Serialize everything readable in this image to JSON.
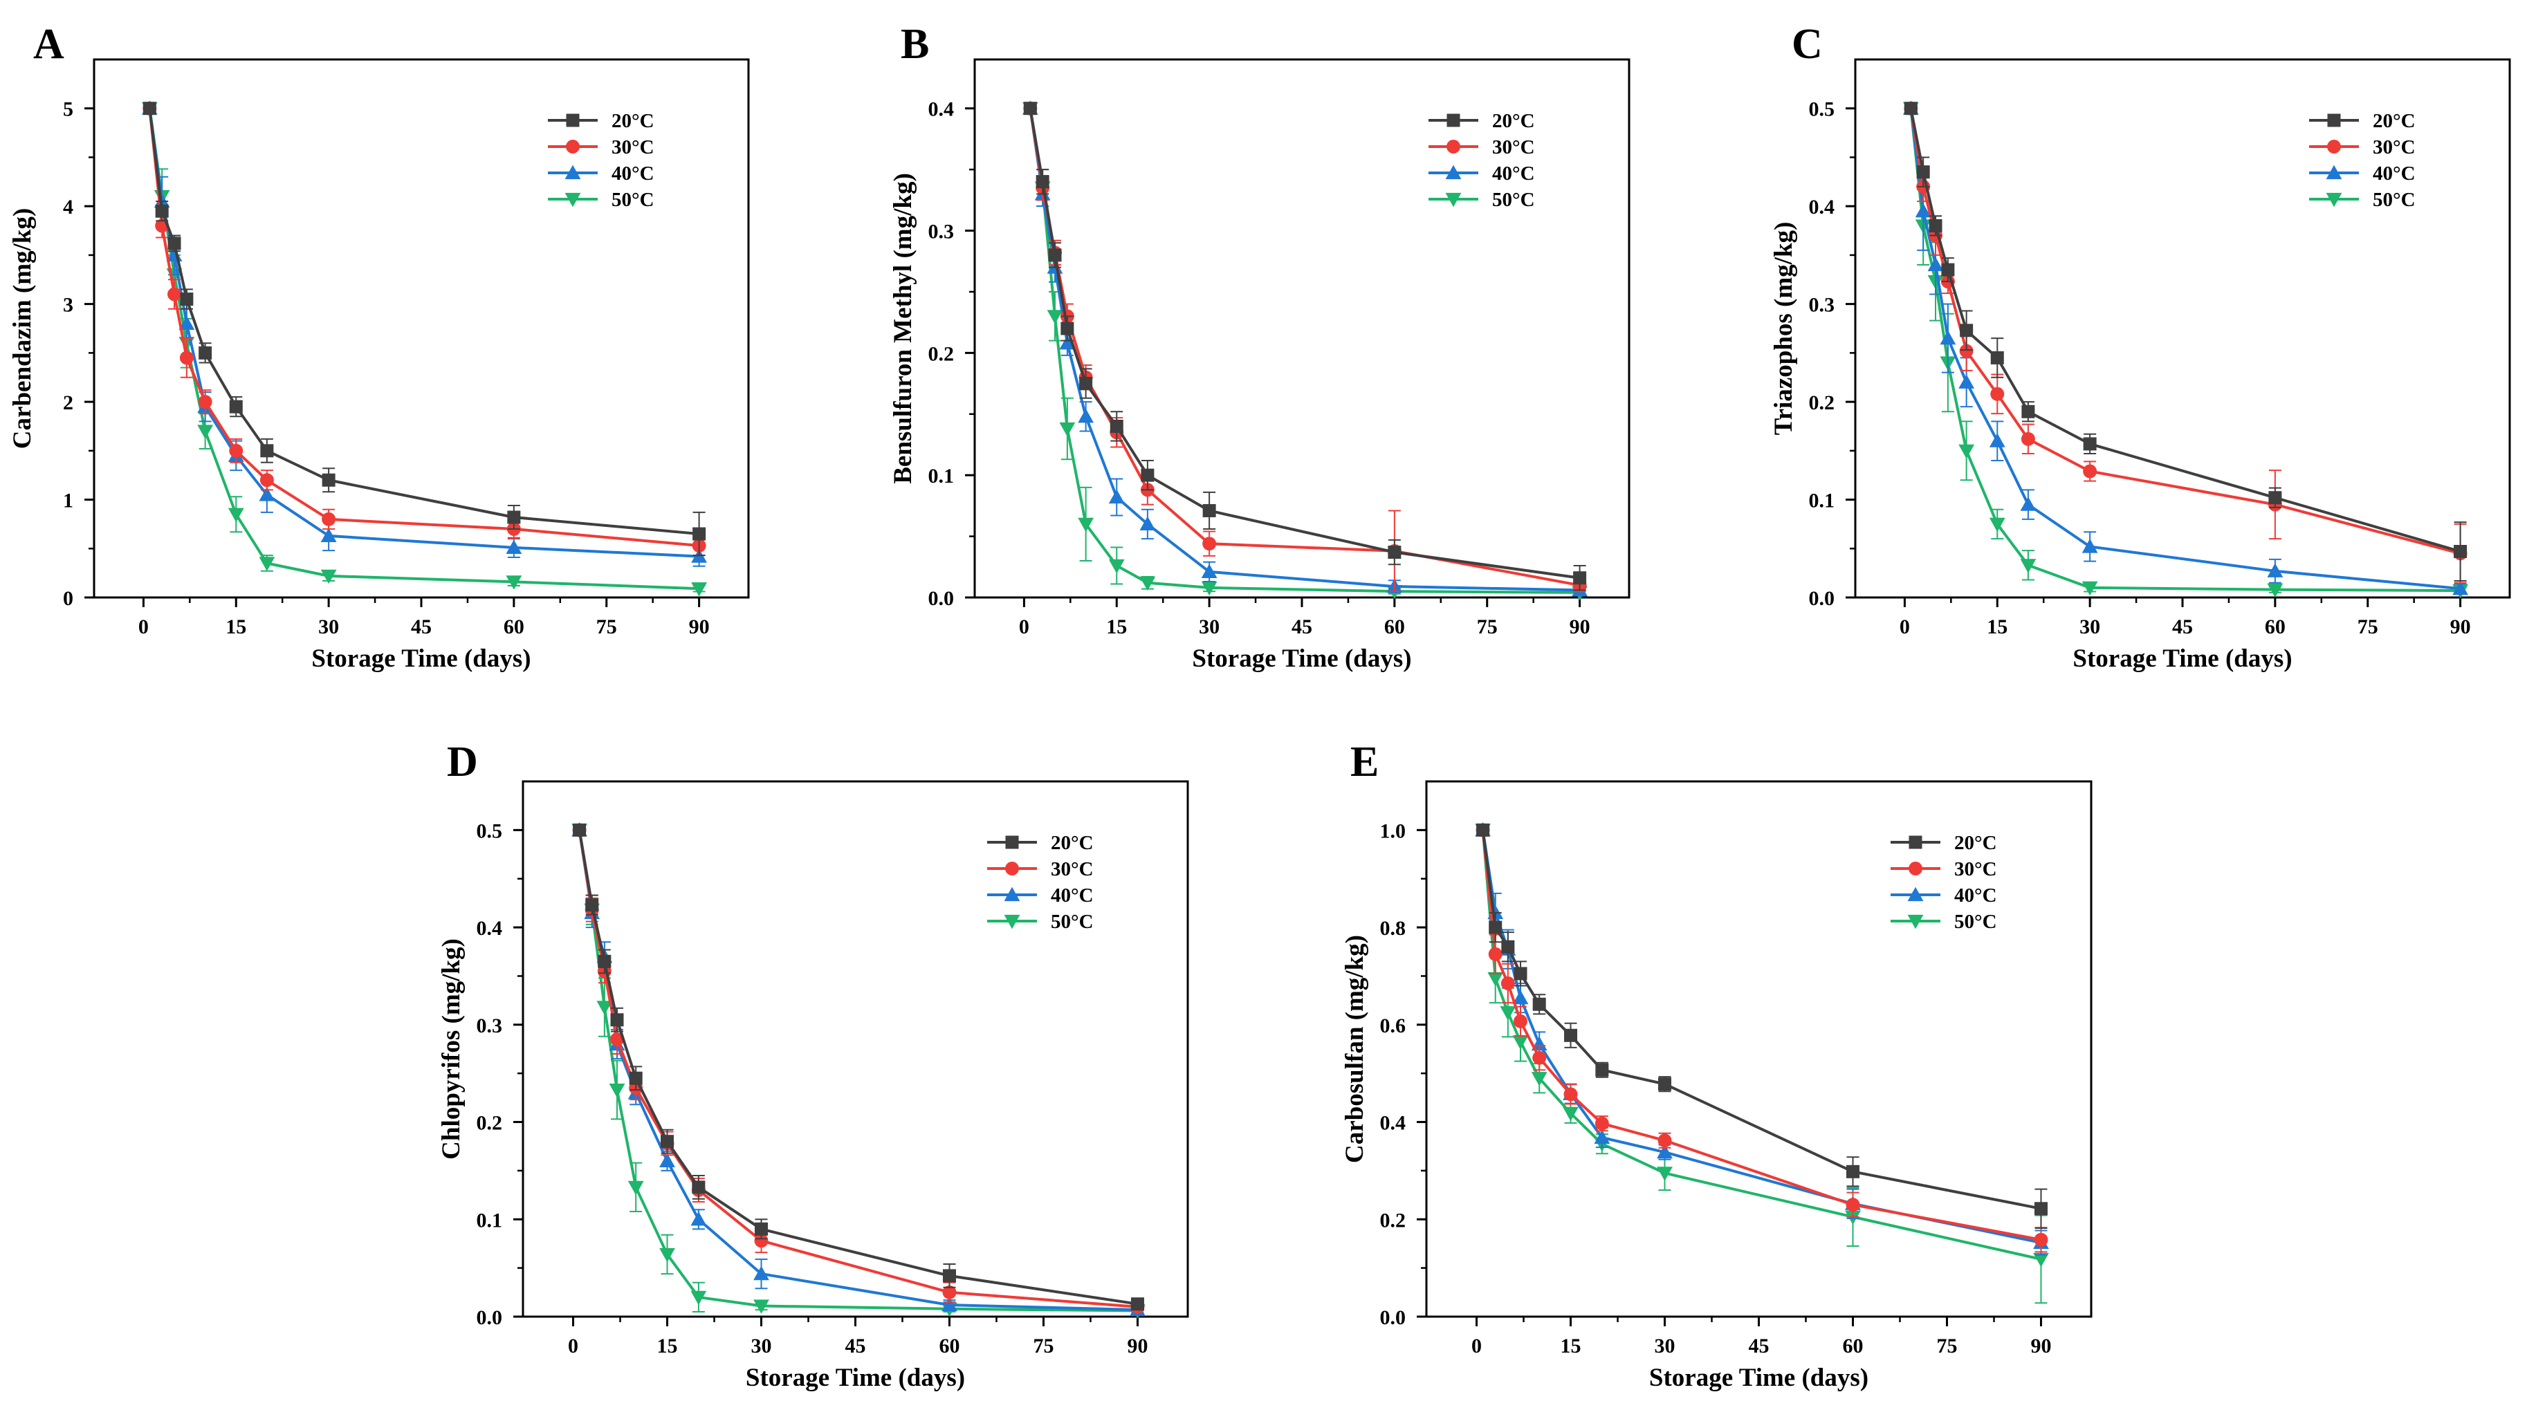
{
  "figure": {
    "background": "#ffffff"
  },
  "colors": {
    "20°C": "#3f3f3f",
    "30°C": "#ef3b36",
    "40°C": "#1f78d4",
    "50°C": "#1fb56a"
  },
  "chart_data": [
    {
      "panel": "A",
      "type": "line",
      "title": "",
      "xlabel": "Storage Time (days)",
      "ylabel": "Carbendazim (mg/kg)",
      "xlim": [
        -8,
        98
      ],
      "ylim": [
        0,
        5.5
      ],
      "xticks": [
        0,
        15,
        30,
        45,
        60,
        75,
        90
      ],
      "yticks": [
        0,
        1,
        2,
        3,
        4,
        5
      ],
      "ytick_labels": [
        "0",
        "1",
        "2",
        "3",
        "4",
        "5"
      ],
      "legend": "top-right",
      "x": [
        1,
        3,
        5,
        7,
        10,
        15,
        20,
        30,
        60,
        90
      ],
      "series": [
        {
          "name": "20°C",
          "marker": "square",
          "values": [
            5.0,
            3.95,
            3.62,
            3.05,
            2.5,
            1.95,
            1.5,
            1.2,
            0.82,
            0.65
          ],
          "errors": [
            0,
            0.1,
            0.08,
            0.1,
            0.1,
            0.1,
            0.12,
            0.12,
            0.12,
            0.22
          ]
        },
        {
          "name": "30°C",
          "marker": "circle",
          "values": [
            5.0,
            3.8,
            3.1,
            2.45,
            2.0,
            1.5,
            1.2,
            0.8,
            0.7,
            0.53
          ],
          "errors": [
            0,
            0.12,
            0.15,
            0.2,
            0.12,
            0.12,
            0.1,
            0.1,
            0.1,
            0.1
          ]
        },
        {
          "name": "40°C",
          "marker": "triangle-up",
          "values": [
            5.0,
            4.05,
            3.5,
            2.8,
            1.95,
            1.45,
            1.05,
            0.63,
            0.51,
            0.42
          ],
          "errors": [
            0,
            0.25,
            0.2,
            0.15,
            0.15,
            0.15,
            0.18,
            0.15,
            0.1,
            0.1
          ]
        },
        {
          "name": "50°C",
          "marker": "triangle-down",
          "values": [
            5.0,
            4.1,
            3.3,
            2.6,
            1.7,
            0.85,
            0.35,
            0.22,
            0.16,
            0.09
          ],
          "errors": [
            0,
            0.28,
            0.2,
            0.25,
            0.18,
            0.18,
            0.08,
            0.05,
            0.04,
            0.03
          ]
        }
      ]
    },
    {
      "panel": "B",
      "type": "line",
      "title": "",
      "xlabel": "Storage Time (days)",
      "ylabel": "Bensulfuron Methyl (mg/kg)",
      "xlim": [
        -8,
        98
      ],
      "ylim": [
        0,
        0.44
      ],
      "xticks": [
        0,
        15,
        30,
        45,
        60,
        75,
        90
      ],
      "yticks": [
        0,
        0.1,
        0.2,
        0.3,
        0.4
      ],
      "ytick_labels": [
        "0.0",
        "0.1",
        "0.2",
        "0.3",
        "0.4"
      ],
      "legend": "top-right",
      "x": [
        1,
        3,
        5,
        7,
        10,
        15,
        20,
        30,
        60,
        90
      ],
      "series": [
        {
          "name": "20°C",
          "marker": "square",
          "values": [
            0.4,
            0.34,
            0.28,
            0.22,
            0.175,
            0.14,
            0.1,
            0.071,
            0.037,
            0.016
          ],
          "errors": [
            0,
            0.01,
            0.01,
            0.01,
            0.012,
            0.012,
            0.012,
            0.015,
            0.01,
            0.01
          ]
        },
        {
          "name": "30°C",
          "marker": "circle",
          "values": [
            0.4,
            0.335,
            0.282,
            0.23,
            0.18,
            0.135,
            0.088,
            0.044,
            0.038,
            0.01
          ],
          "errors": [
            0,
            0.01,
            0.01,
            0.01,
            0.01,
            0.012,
            0.012,
            0.01,
            0.033,
            0.005
          ]
        },
        {
          "name": "40°C",
          "marker": "triangle-up",
          "values": [
            0.4,
            0.33,
            0.27,
            0.208,
            0.148,
            0.082,
            0.06,
            0.021,
            0.009,
            0.006
          ],
          "errors": [
            0,
            0.01,
            0.012,
            0.01,
            0.012,
            0.015,
            0.012,
            0.008,
            0.005,
            0.003
          ]
        },
        {
          "name": "50°C",
          "marker": "triangle-down",
          "values": [
            0.4,
            0.335,
            0.23,
            0.138,
            0.06,
            0.026,
            0.012,
            0.008,
            0.005,
            0.004
          ],
          "errors": [
            0,
            0.015,
            0.02,
            0.025,
            0.03,
            0.015,
            0.005,
            0.003,
            0.002,
            0.002
          ]
        }
      ]
    },
    {
      "panel": "C",
      "type": "line",
      "title": "",
      "xlabel": "Storage Time (days)",
      "ylabel": "Triazophos (mg/kg)",
      "xlim": [
        -8,
        98
      ],
      "ylim": [
        0,
        0.55
      ],
      "xticks": [
        0,
        15,
        30,
        45,
        60,
        75,
        90
      ],
      "yticks": [
        0,
        0.1,
        0.2,
        0.3,
        0.4,
        0.5
      ],
      "ytick_labels": [
        "0.0",
        "0.1",
        "0.2",
        "0.3",
        "0.4",
        "0.5"
      ],
      "legend": "top-right",
      "x": [
        1,
        3,
        5,
        7,
        10,
        15,
        20,
        30,
        60,
        90
      ],
      "series": [
        {
          "name": "20°C",
          "marker": "square",
          "values": [
            0.5,
            0.435,
            0.38,
            0.335,
            0.273,
            0.245,
            0.19,
            0.157,
            0.102,
            0.047
          ],
          "errors": [
            0,
            0.015,
            0.01,
            0.012,
            0.02,
            0.02,
            0.01,
            0.01,
            0.01,
            0.03
          ]
        },
        {
          "name": "30°C",
          "marker": "circle",
          "values": [
            0.5,
            0.42,
            0.37,
            0.323,
            0.252,
            0.208,
            0.162,
            0.129,
            0.095,
            0.045
          ],
          "errors": [
            0,
            0.015,
            0.02,
            0.012,
            0.02,
            0.02,
            0.015,
            0.01,
            0.035,
            0.03
          ]
        },
        {
          "name": "40°C",
          "marker": "triangle-up",
          "values": [
            0.5,
            0.395,
            0.34,
            0.265,
            0.22,
            0.16,
            0.095,
            0.052,
            0.027,
            0.009
          ],
          "errors": [
            0,
            0.04,
            0.03,
            0.035,
            0.025,
            0.02,
            0.015,
            0.015,
            0.012,
            0.005
          ]
        },
        {
          "name": "50°C",
          "marker": "triangle-down",
          "values": [
            0.5,
            0.38,
            0.323,
            0.24,
            0.15,
            0.075,
            0.033,
            0.01,
            0.008,
            0.007
          ],
          "errors": [
            0,
            0.04,
            0.04,
            0.05,
            0.03,
            0.015,
            0.015,
            0.004,
            0.003,
            0.003
          ]
        }
      ]
    },
    {
      "panel": "D",
      "type": "line",
      "title": "",
      "xlabel": "Storage Time (days)",
      "ylabel": "Chlopyrifos (mg/kg)",
      "xlim": [
        -8,
        98
      ],
      "ylim": [
        0,
        0.55
      ],
      "xticks": [
        0,
        15,
        30,
        45,
        60,
        75,
        90
      ],
      "yticks": [
        0,
        0.1,
        0.2,
        0.3,
        0.4,
        0.5
      ],
      "ytick_labels": [
        "0.0",
        "0.1",
        "0.2",
        "0.3",
        "0.4",
        "0.5"
      ],
      "legend": "top-right",
      "x": [
        1,
        3,
        5,
        7,
        10,
        15,
        20,
        30,
        60,
        90
      ],
      "series": [
        {
          "name": "20°C",
          "marker": "square",
          "values": [
            0.5,
            0.423,
            0.365,
            0.305,
            0.245,
            0.18,
            0.133,
            0.09,
            0.042,
            0.013
          ],
          "errors": [
            0,
            0.01,
            0.012,
            0.012,
            0.012,
            0.012,
            0.012,
            0.01,
            0.012,
            0.005
          ]
        },
        {
          "name": "30°C",
          "marker": "circle",
          "values": [
            0.5,
            0.418,
            0.355,
            0.285,
            0.235,
            0.178,
            0.13,
            0.078,
            0.025,
            0.01
          ],
          "errors": [
            0,
            0.012,
            0.012,
            0.015,
            0.012,
            0.012,
            0.012,
            0.012,
            0.01,
            0.004
          ]
        },
        {
          "name": "40°C",
          "marker": "triangle-up",
          "values": [
            0.5,
            0.415,
            0.37,
            0.28,
            0.23,
            0.16,
            0.1,
            0.044,
            0.012,
            0.007
          ],
          "errors": [
            0,
            0.015,
            0.015,
            0.015,
            0.012,
            0.01,
            0.01,
            0.015,
            0.005,
            0.003
          ]
        },
        {
          "name": "50°C",
          "marker": "triangle-down",
          "values": [
            0.5,
            0.418,
            0.318,
            0.233,
            0.133,
            0.064,
            0.02,
            0.011,
            0.008,
            0.006
          ],
          "errors": [
            0,
            0.015,
            0.03,
            0.03,
            0.025,
            0.02,
            0.015,
            0.004,
            0.003,
            0.003
          ]
        }
      ]
    },
    {
      "panel": "E",
      "type": "line",
      "title": "",
      "xlabel": "Storage Time (days)",
      "ylabel": "Carbosulfan (mg/kg)",
      "xlim": [
        -8,
        98
      ],
      "ylim": [
        0,
        1.1
      ],
      "xticks": [
        0,
        15,
        30,
        45,
        60,
        75,
        90
      ],
      "yticks": [
        0,
        0.2,
        0.4,
        0.6,
        0.8,
        1.0
      ],
      "ytick_labels": [
        "0.0",
        "0.2",
        "0.4",
        "0.6",
        "0.8",
        "1.0"
      ],
      "legend": "top-right",
      "x": [
        1,
        3,
        5,
        7,
        10,
        15,
        20,
        30,
        60,
        90
      ],
      "series": [
        {
          "name": "20°C",
          "marker": "square",
          "values": [
            1.0,
            0.8,
            0.76,
            0.705,
            0.642,
            0.578,
            0.507,
            0.478,
            0.298,
            0.222
          ],
          "errors": [
            0,
            0.03,
            0.03,
            0.025,
            0.02,
            0.025,
            0.015,
            0.015,
            0.03,
            0.04
          ]
        },
        {
          "name": "30°C",
          "marker": "circle",
          "values": [
            1.0,
            0.745,
            0.685,
            0.607,
            0.532,
            0.457,
            0.397,
            0.362,
            0.23,
            0.158
          ],
          "errors": [
            0,
            0.04,
            0.04,
            0.03,
            0.025,
            0.02,
            0.015,
            0.015,
            0.025,
            0.025
          ]
        },
        {
          "name": "40°C",
          "marker": "triangle-up",
          "values": [
            1.0,
            0.83,
            0.755,
            0.655,
            0.56,
            0.458,
            0.368,
            0.338,
            0.232,
            0.152
          ],
          "errors": [
            0,
            0.04,
            0.04,
            0.03,
            0.025,
            0.02,
            0.02,
            0.015,
            0.03,
            0.025
          ]
        },
        {
          "name": "50°C",
          "marker": "triangle-down",
          "values": [
            1.0,
            0.695,
            0.625,
            0.565,
            0.49,
            0.418,
            0.355,
            0.295,
            0.205,
            0.118
          ],
          "errors": [
            0,
            0.05,
            0.05,
            0.04,
            0.03,
            0.02,
            0.02,
            0.035,
            0.06,
            0.09
          ]
        }
      ]
    }
  ]
}
